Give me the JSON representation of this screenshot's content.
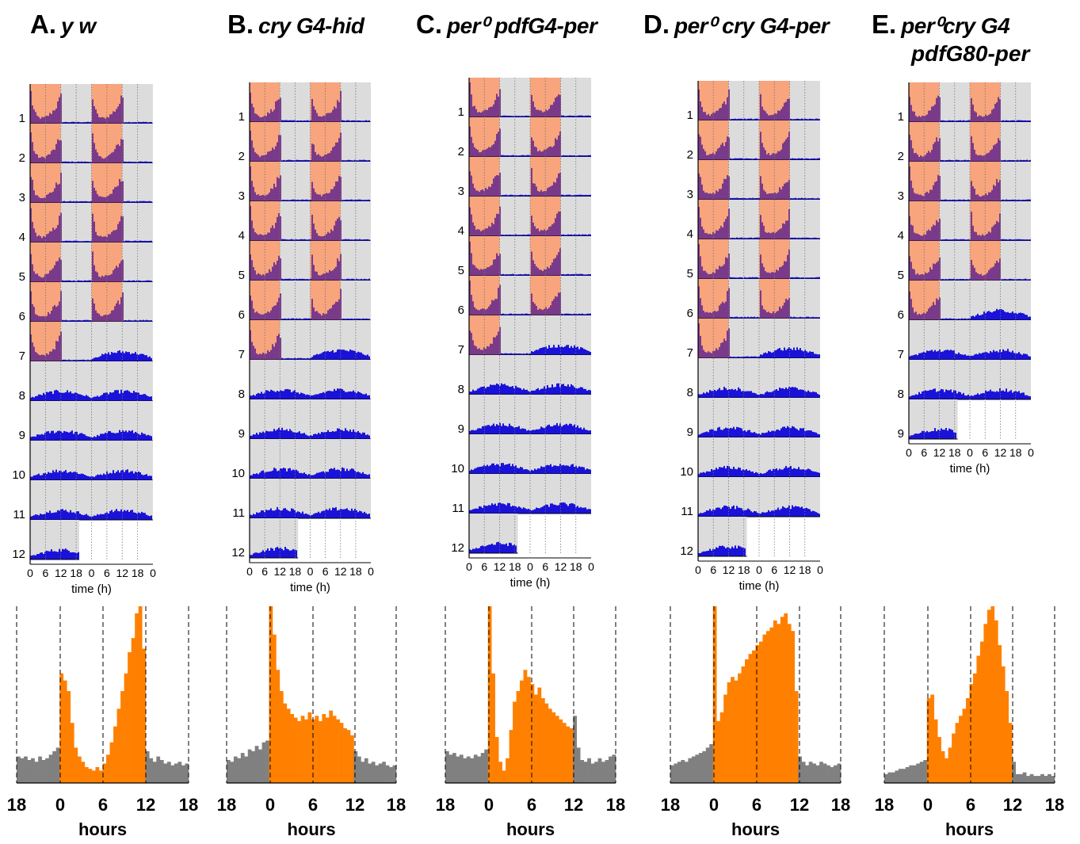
{
  "panels": [
    {
      "letter": "A.",
      "genotype": "y w",
      "genotype_line2": ""
    },
    {
      "letter": "B.",
      "genotype": "cry G4-hid",
      "genotype_line2": ""
    },
    {
      "letter": "C.",
      "genotype": "per⁰ pdfG4-per",
      "genotype_line2": ""
    },
    {
      "letter": "D.",
      "genotype": "per⁰ cry G4-per",
      "genotype_line2": ""
    },
    {
      "letter": "E.",
      "genotype": "per⁰cry G4",
      "genotype_line2": "pdfG80-per"
    }
  ],
  "colors": {
    "activity": "#1a12d9",
    "light_phase": "#f8a47c",
    "activity_in_light": "#7a3a8a",
    "dark_phase": "#dcdcdc",
    "histogram_light": "#ff8000",
    "histogram_dark": "#808080"
  },
  "chart_data": [
    {
      "type": "actogram",
      "panel": "A",
      "days": [
        "1",
        "2",
        "3",
        "4",
        "5",
        "6",
        "7",
        "8",
        "9",
        "10",
        "11",
        "12"
      ],
      "x_tick_labels": [
        "0",
        "6",
        "12",
        "18",
        "0",
        "6",
        "12",
        "18",
        "0"
      ],
      "xlabel": "time (h)",
      "cycles_LD_12_12": 7,
      "last_day_fraction": 0.4
    },
    {
      "type": "actogram",
      "panel": "B",
      "days": [
        "1",
        "2",
        "3",
        "4",
        "5",
        "6",
        "7",
        "8",
        "9",
        "10",
        "11",
        "12"
      ],
      "x_tick_labels": [
        "0",
        "6",
        "12",
        "18",
        "0",
        "6",
        "12",
        "18",
        "0"
      ],
      "xlabel": "time (h)",
      "cycles_LD_12_12": 7,
      "last_day_fraction": 0.4
    },
    {
      "type": "actogram",
      "panel": "C",
      "days": [
        "1",
        "2",
        "3",
        "4",
        "5",
        "6",
        "7",
        "8",
        "9",
        "10",
        "11",
        "12"
      ],
      "x_tick_labels": [
        "0",
        "6",
        "12",
        "18",
        "0",
        "6",
        "12",
        "18",
        "0"
      ],
      "xlabel": "time (h)",
      "cycles_LD_12_12": 7,
      "last_day_fraction": 0.4
    },
    {
      "type": "actogram",
      "panel": "D",
      "days": [
        "1",
        "2",
        "3",
        "4",
        "5",
        "6",
        "7",
        "8",
        "9",
        "10",
        "11",
        "12"
      ],
      "x_tick_labels": [
        "0",
        "6",
        "12",
        "18",
        "0",
        "6",
        "12",
        "18",
        "0"
      ],
      "xlabel": "time (h)",
      "cycles_LD_12_12": 7,
      "last_day_fraction": 0.4
    },
    {
      "type": "actogram",
      "panel": "E",
      "days": [
        "1",
        "2",
        "3",
        "4",
        "5",
        "6",
        "7",
        "8",
        "9"
      ],
      "x_tick_labels": [
        "0",
        "6",
        "12",
        "18",
        "0",
        "6",
        "12",
        "18",
        "0"
      ],
      "xlabel": "time (h)",
      "cycles_LD_12_12": 6,
      "last_day_fraction": 0.4
    },
    {
      "type": "bar",
      "panel": "A",
      "xlabel": "hours",
      "x_tick_labels": [
        "18",
        "0",
        "6",
        "12",
        "18"
      ],
      "xlim": [
        -6,
        18
      ],
      "light_phase_hours": [
        0,
        12
      ],
      "bin_hours": 0.5,
      "values": [
        0.15,
        0.14,
        0.15,
        0.13,
        0.14,
        0.12,
        0.15,
        0.13,
        0.14,
        0.16,
        0.18,
        0.2,
        0.62,
        0.58,
        0.52,
        0.34,
        0.2,
        0.15,
        0.12,
        0.09,
        0.08,
        0.07,
        0.09,
        0.07,
        0.11,
        0.16,
        0.23,
        0.32,
        0.42,
        0.52,
        0.62,
        0.74,
        0.82,
        0.96,
        1.0,
        0.76,
        0.18,
        0.14,
        0.12,
        0.15,
        0.13,
        0.11,
        0.12,
        0.1,
        0.11,
        0.12,
        0.1,
        0.11
      ]
    },
    {
      "type": "bar",
      "panel": "B",
      "xlabel": "hours",
      "x_tick_labels": [
        "18",
        "0",
        "6",
        "12",
        "18"
      ],
      "xlim": [
        -6,
        18
      ],
      "light_phase_hours": [
        0,
        12
      ],
      "bin_hours": 0.5,
      "values": [
        0.13,
        0.12,
        0.15,
        0.14,
        0.17,
        0.15,
        0.19,
        0.18,
        0.21,
        0.19,
        0.23,
        0.24,
        1.0,
        0.84,
        0.64,
        0.52,
        0.45,
        0.42,
        0.39,
        0.37,
        0.35,
        0.38,
        0.36,
        0.4,
        0.36,
        0.38,
        0.35,
        0.39,
        0.37,
        0.41,
        0.38,
        0.36,
        0.34,
        0.31,
        0.3,
        0.27,
        0.18,
        0.15,
        0.12,
        0.14,
        0.11,
        0.12,
        0.1,
        0.11,
        0.12,
        0.1,
        0.09,
        0.1
      ]
    },
    {
      "type": "bar",
      "panel": "C",
      "xlabel": "hours",
      "x_tick_labels": [
        "18",
        "0",
        "6",
        "12",
        "18"
      ],
      "xlim": [
        -6,
        18
      ],
      "light_phase_hours": [
        0,
        12
      ],
      "bin_hours": 0.5,
      "values": [
        0.18,
        0.16,
        0.17,
        0.15,
        0.16,
        0.14,
        0.15,
        0.14,
        0.16,
        0.15,
        0.17,
        0.19,
        1.0,
        0.62,
        0.26,
        0.12,
        0.07,
        0.14,
        0.3,
        0.46,
        0.52,
        0.58,
        0.64,
        0.6,
        0.56,
        0.5,
        0.54,
        0.48,
        0.45,
        0.42,
        0.4,
        0.38,
        0.36,
        0.34,
        0.32,
        0.31,
        0.38,
        0.2,
        0.13,
        0.12,
        0.14,
        0.11,
        0.12,
        0.14,
        0.12,
        0.13,
        0.15,
        0.16
      ]
    },
    {
      "type": "bar",
      "panel": "D",
      "xlabel": "hours",
      "x_tick_labels": [
        "18",
        "0",
        "6",
        "12",
        "18"
      ],
      "xlim": [
        -6,
        18
      ],
      "light_phase_hours": [
        0,
        12
      ],
      "bin_hours": 0.5,
      "values": [
        0.1,
        0.11,
        0.12,
        0.13,
        0.12,
        0.14,
        0.15,
        0.16,
        0.17,
        0.18,
        0.2,
        0.22,
        1.0,
        0.35,
        0.4,
        0.5,
        0.57,
        0.6,
        0.58,
        0.62,
        0.66,
        0.7,
        0.73,
        0.75,
        0.78,
        0.8,
        0.84,
        0.86,
        0.88,
        0.92,
        0.9,
        0.94,
        0.96,
        0.9,
        0.86,
        0.52,
        0.15,
        0.12,
        0.1,
        0.12,
        0.11,
        0.1,
        0.12,
        0.11,
        0.1,
        0.09,
        0.1,
        0.11
      ]
    },
    {
      "type": "bar",
      "panel": "E",
      "xlabel": "hours",
      "x_tick_labels": [
        "18",
        "0",
        "6",
        "12",
        "18"
      ],
      "xlim": [
        -6,
        18
      ],
      "light_phase_hours": [
        0,
        12
      ],
      "bin_hours": 0.5,
      "values": [
        0.05,
        0.06,
        0.06,
        0.07,
        0.08,
        0.08,
        0.09,
        0.1,
        0.1,
        0.11,
        0.12,
        0.13,
        0.48,
        0.5,
        0.36,
        0.26,
        0.18,
        0.14,
        0.2,
        0.28,
        0.34,
        0.38,
        0.42,
        0.48,
        0.56,
        0.62,
        0.72,
        0.8,
        0.9,
        0.98,
        1.0,
        0.92,
        0.78,
        0.66,
        0.52,
        0.34,
        0.12,
        0.05,
        0.05,
        0.06,
        0.04,
        0.05,
        0.04,
        0.04,
        0.05,
        0.04,
        0.05,
        0.04
      ]
    }
  ]
}
